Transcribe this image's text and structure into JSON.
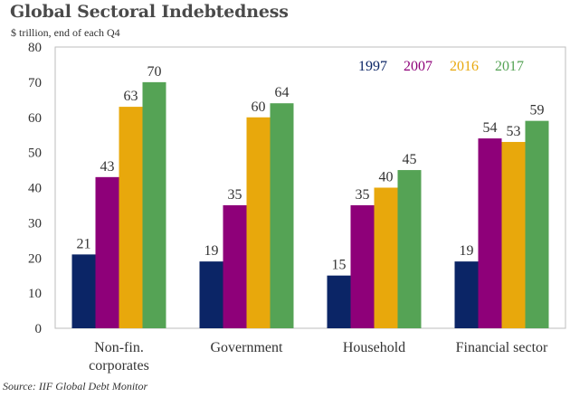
{
  "chart_data": {
    "type": "bar",
    "title": "Global Sectoral Indebtedness",
    "subtitle": "$ trillion, end of each Q4",
    "xlabel": "",
    "ylabel": "",
    "ylim": [
      0,
      80
    ],
    "yticks": [
      0,
      10,
      20,
      30,
      40,
      50,
      60,
      70,
      80
    ],
    "grid": false,
    "legend_position": "top-right",
    "categories": [
      [
        "Non-fin.",
        "corporates"
      ],
      [
        "Government"
      ],
      [
        "Household"
      ],
      [
        "Financial sector"
      ]
    ],
    "series": [
      {
        "name": "1997",
        "color": "#0b2566",
        "values": [
          21,
          19,
          15,
          19
        ]
      },
      {
        "name": "2007",
        "color": "#8e0079",
        "values": [
          43,
          35,
          35,
          54
        ]
      },
      {
        "name": "2016",
        "color": "#e8a80c",
        "values": [
          63,
          60,
          40,
          53
        ]
      },
      {
        "name": "2017",
        "color": "#55a355",
        "values": [
          70,
          64,
          45,
          59
        ]
      }
    ],
    "source": "Source: IIF Global Debt Monitor"
  }
}
